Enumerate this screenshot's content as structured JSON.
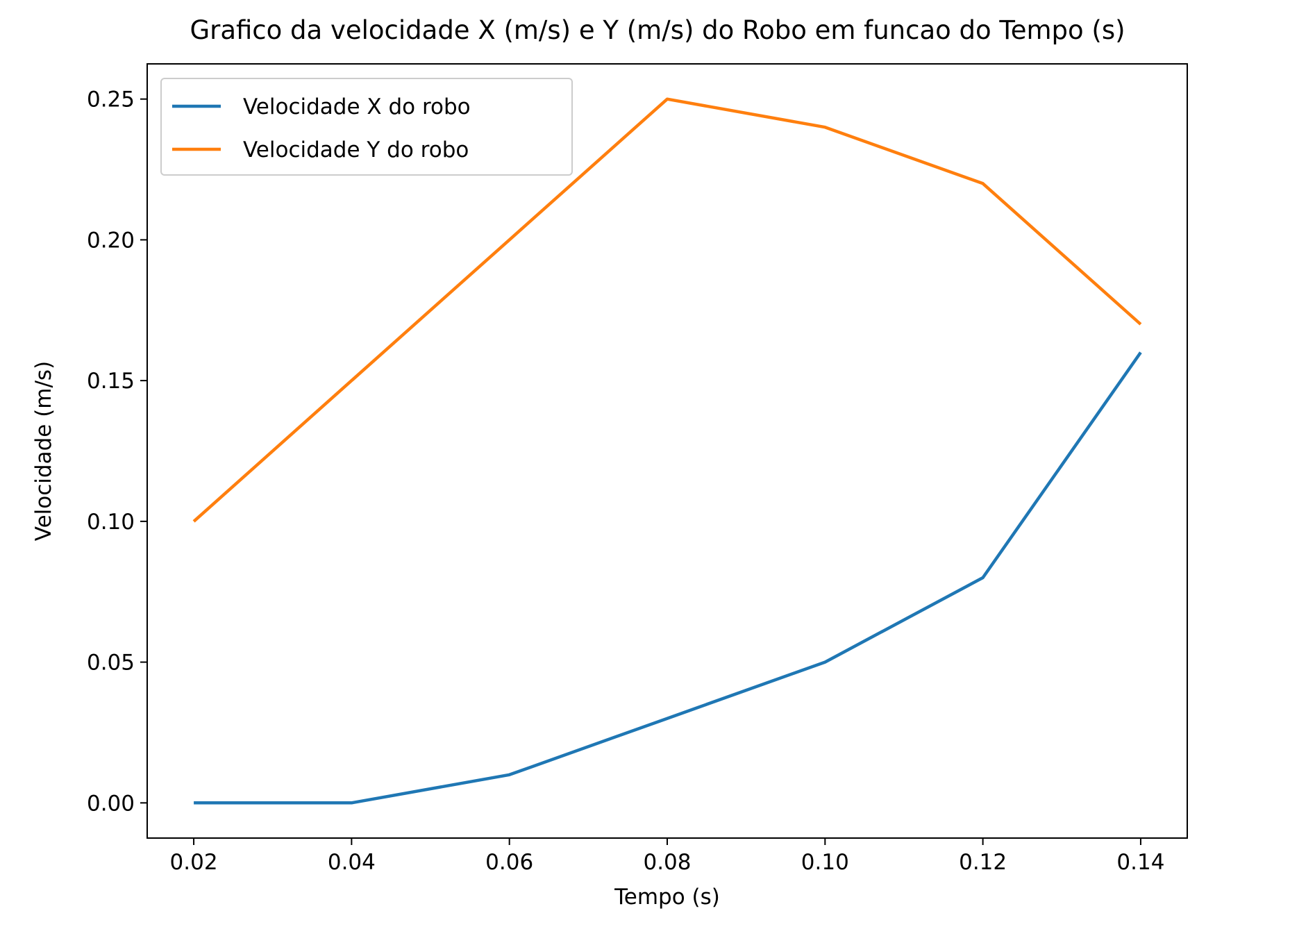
{
  "chart_data": {
    "type": "line",
    "title": "Grafico da velocidade X (m/s) e Y (m/s) do Robo em funcao do Tempo (s)",
    "xlabel": "Tempo (s)",
    "ylabel": "Velocidade (m/s)",
    "x": [
      0.02,
      0.04,
      0.06,
      0.08,
      0.1,
      0.12,
      0.14
    ],
    "xlim": [
      0.0141,
      0.1459
    ],
    "ylim": [
      -0.0125,
      0.2625
    ],
    "xticks": [
      0.02,
      0.04,
      0.06,
      0.08,
      0.1,
      0.12,
      0.14
    ],
    "xtick_labels": [
      "0.02",
      "0.04",
      "0.06",
      "0.08",
      "0.10",
      "0.12",
      "0.14"
    ],
    "yticks": [
      0.0,
      0.05,
      0.1,
      0.15,
      0.2,
      0.25
    ],
    "ytick_labels": [
      "0.00",
      "0.05",
      "0.10",
      "0.15",
      "0.20",
      "0.25"
    ],
    "grid": false,
    "legend_position": "top-left",
    "series": [
      {
        "name": "Velocidade X do robo",
        "color": "#1f77b4",
        "values": [
          0.0,
          0.0,
          0.01,
          0.03,
          0.05,
          0.08,
          0.16
        ]
      },
      {
        "name": "Velocidade Y do robo",
        "color": "#ff7f0e",
        "values": [
          0.1,
          0.15,
          0.2,
          0.25,
          0.24,
          0.22,
          0.17
        ]
      }
    ]
  }
}
